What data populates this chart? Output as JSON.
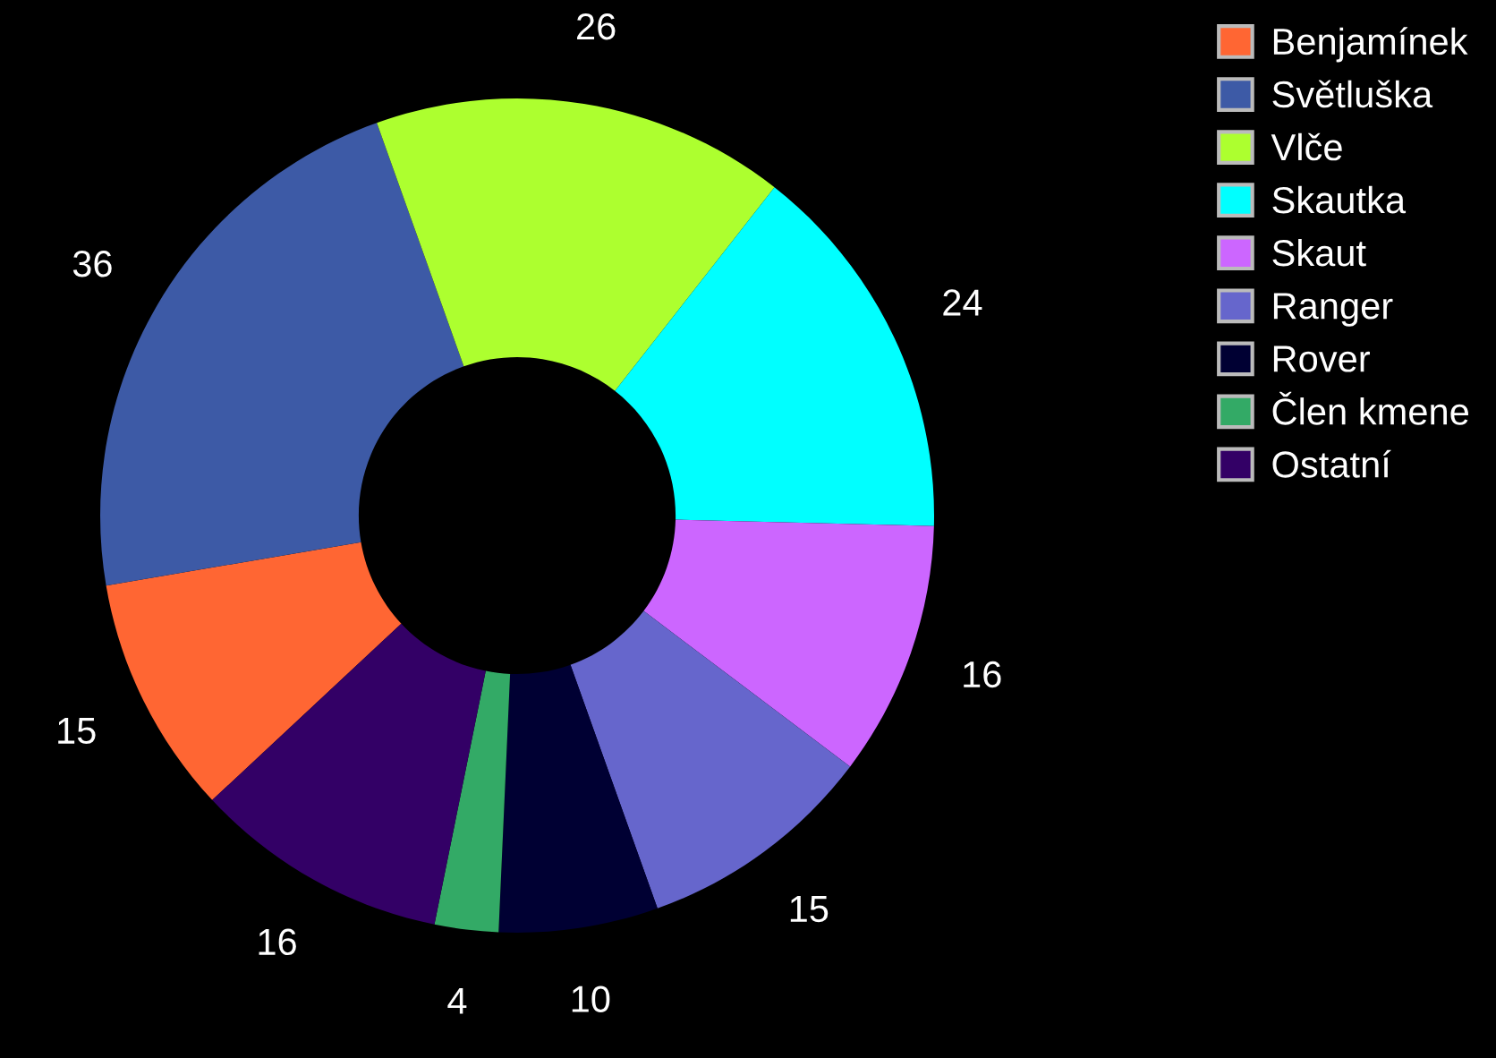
{
  "chart_data": {
    "type": "donut",
    "categories": [
      "Benjamínek",
      "Světluška",
      "Vlče",
      "Skautka",
      "Skaut",
      "Ranger",
      "Rover",
      "Člen kmene",
      "Ostatní"
    ],
    "values": [
      15,
      36,
      26,
      24,
      16,
      15,
      10,
      4,
      16
    ],
    "colors": [
      "#ff6633",
      "#3d5aa6",
      "#adff2f",
      "#00ffff",
      "#cc66ff",
      "#6666cc",
      "#000033",
      "#33aa66",
      "#330066"
    ],
    "data_labels": true,
    "legend": "top right"
  }
}
